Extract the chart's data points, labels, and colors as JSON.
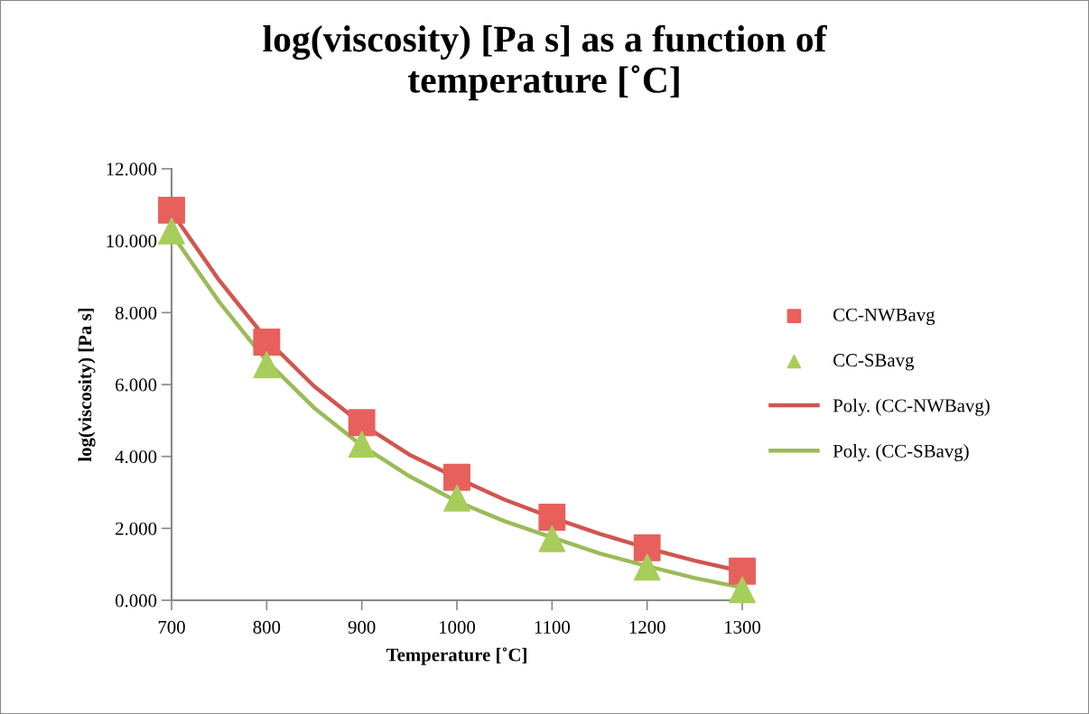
{
  "chart_data": {
    "type": "scatter",
    "title": "log(viscosity) [Pa s] as a function of temperature [˚C]",
    "xlabel": "Temperature [˚C]",
    "ylabel": "log(viscosity) [Pa s]",
    "xlim": [
      700,
      1300
    ],
    "xticks": [
      700,
      800,
      900,
      1000,
      1100,
      1200,
      1300
    ],
    "ylim": [
      0,
      12
    ],
    "yticks": [
      {
        "value": 0,
        "label": "0.000"
      },
      {
        "value": 2,
        "label": "2.000"
      },
      {
        "value": 4,
        "label": "4.000"
      },
      {
        "value": 6,
        "label": "6.000"
      },
      {
        "value": 8,
        "label": "8.000"
      },
      {
        "value": 10,
        "label": "10.000"
      },
      {
        "value": 12,
        "label": "12.000"
      }
    ],
    "grid": false,
    "legend": "right",
    "series": [
      {
        "name": "CC-NWBavg",
        "marker": "square",
        "color": "#e8605c",
        "x": [
          700,
          800,
          900,
          1000,
          1100,
          1200,
          1300
        ],
        "values": [
          10.85,
          7.18,
          4.94,
          3.42,
          2.31,
          1.46,
          0.81
        ]
      },
      {
        "name": "CC-SBavg",
        "marker": "triangle",
        "color": "#a9cd5a",
        "x": [
          700,
          800,
          900,
          1000,
          1100,
          1200,
          1300
        ],
        "values": [
          10.27,
          6.55,
          4.34,
          2.84,
          1.71,
          0.92,
          0.29
        ]
      },
      {
        "name": "Poly. (CC-NWBavg)",
        "type": "line",
        "marker": "none",
        "line_style": "solid",
        "color": "#d0564f",
        "x": [
          700,
          750,
          800,
          850,
          900,
          950,
          1000,
          1050,
          1100,
          1150,
          1200,
          1250,
          1300
        ],
        "values": [
          10.8,
          8.9,
          7.25,
          5.95,
          4.9,
          4.05,
          3.4,
          2.8,
          2.3,
          1.85,
          1.45,
          1.1,
          0.8
        ]
      },
      {
        "name": "Poly. (CC-SBavg)",
        "type": "line",
        "marker": "none",
        "line_style": "solid",
        "color": "#9bbb59",
        "x": [
          700,
          750,
          800,
          850,
          900,
          950,
          1000,
          1050,
          1100,
          1150,
          1200,
          1250,
          1300
        ],
        "values": [
          10.2,
          8.3,
          6.65,
          5.35,
          4.3,
          3.45,
          2.75,
          2.2,
          1.75,
          1.3,
          0.95,
          0.62,
          0.35
        ]
      }
    ]
  }
}
